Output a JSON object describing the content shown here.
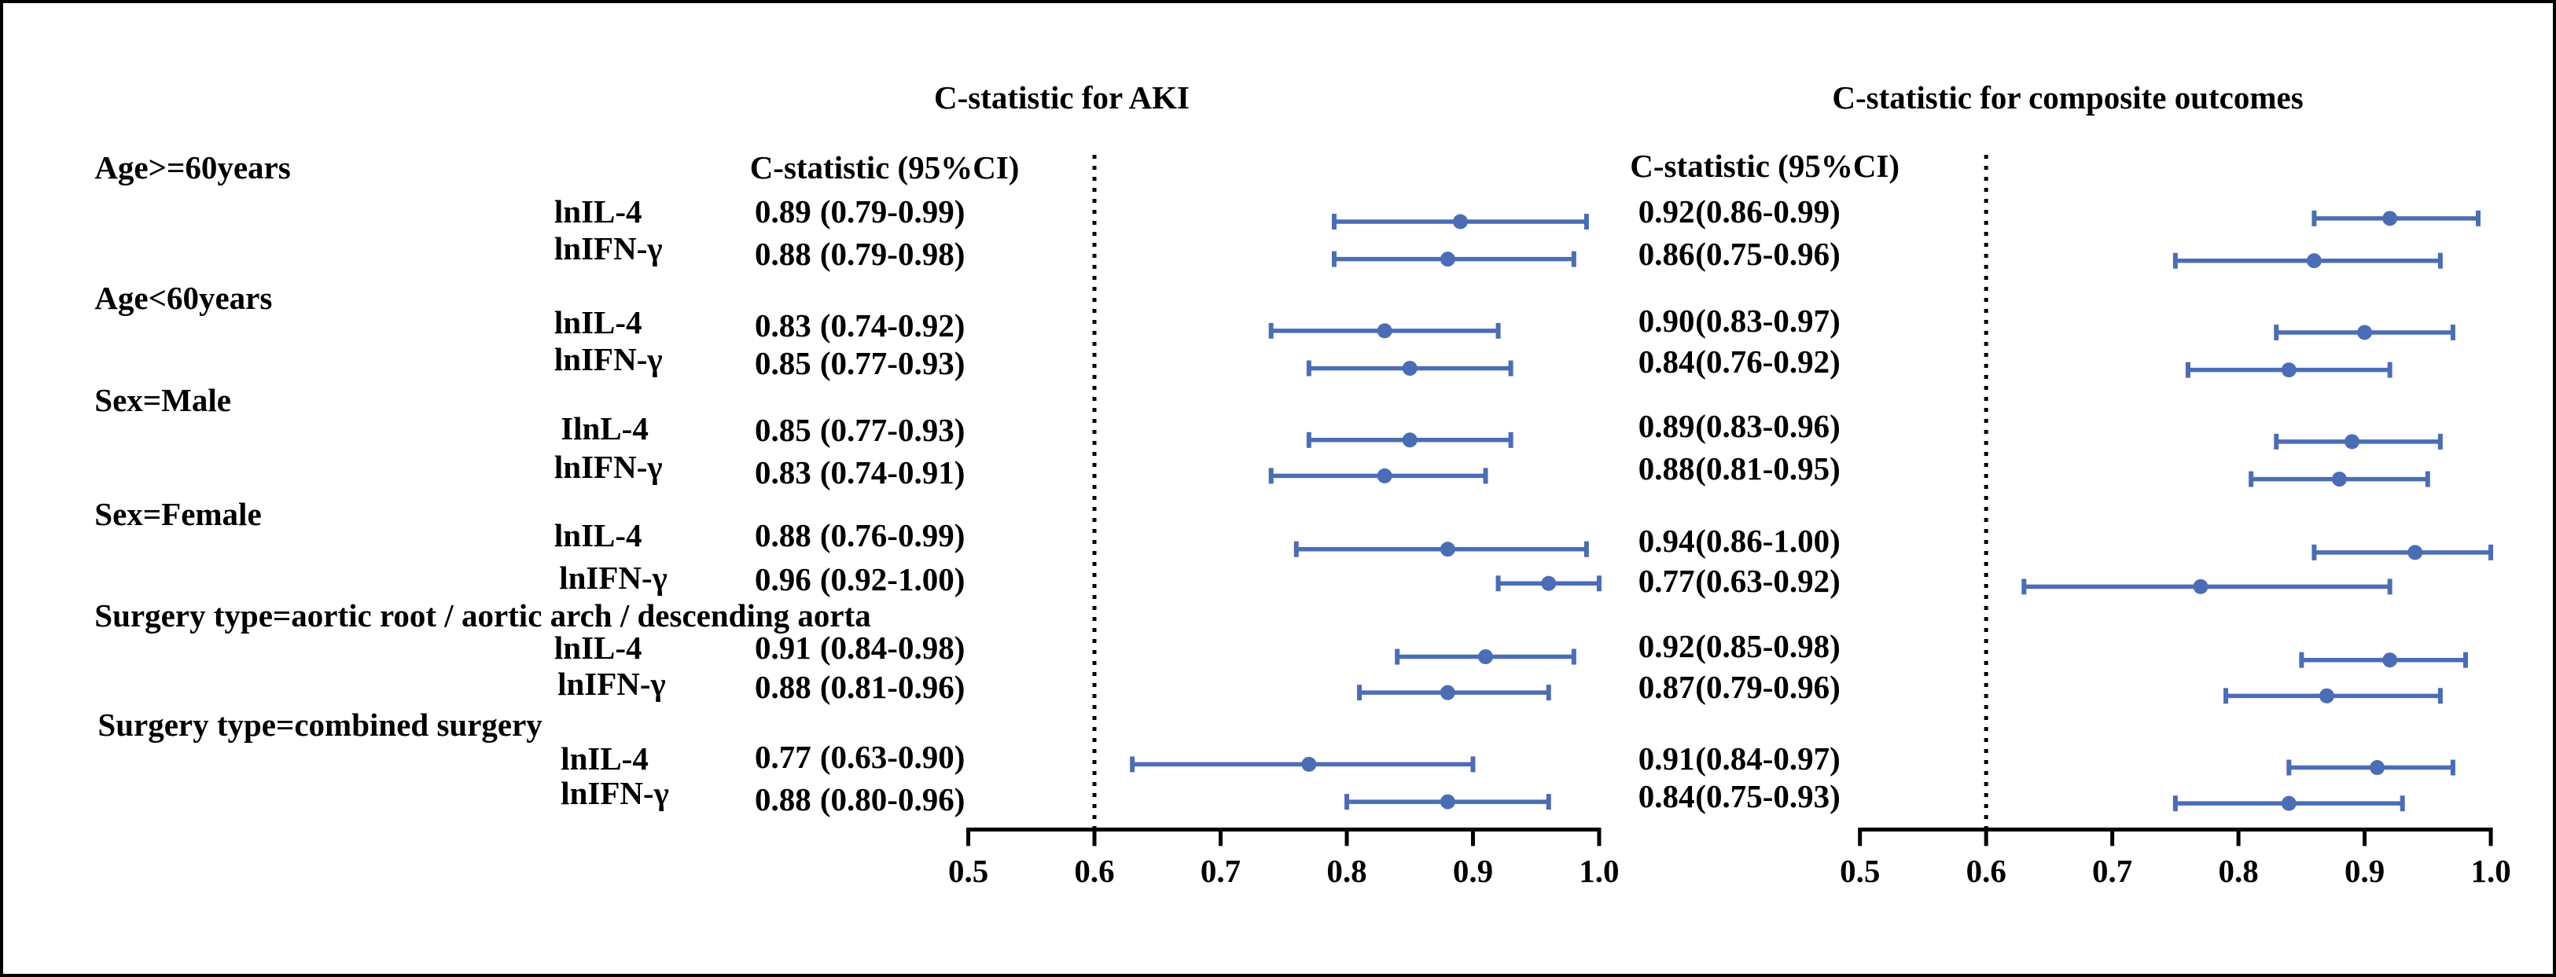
{
  "subgroups": [
    {
      "label": "Age>=60years",
      "rows": [
        "lnIL-4",
        "lnIFN-γ"
      ]
    },
    {
      "label": "Age<60years",
      "rows": [
        "lnIL-4",
        "lnIFN-γ"
      ]
    },
    {
      "label": "Sex=Male",
      "rows": [
        "IlnL-4",
        "lnIFN-γ"
      ]
    },
    {
      "label": "Sex=Female",
      "rows": [
        "lnIL-4",
        "lnIFN-γ"
      ]
    },
    {
      "label": "Surgery type=aortic root / aortic arch / descending aorta",
      "rows": [
        "lnIL-4",
        "lnIFN-γ"
      ]
    },
    {
      "label": "Surgery type=combined surgery",
      "rows": [
        "lnIL-4",
        "lnIFN-γ"
      ]
    }
  ],
  "colors": {
    "marker": "#4a6db5",
    "reference_line": "#000000"
  },
  "chart_data": [
    {
      "type": "scatter",
      "title": "C-statistic for AKI",
      "column_header": "C-statistic (95%CI)",
      "xlim": [
        0.5,
        1.0
      ],
      "xticks": [
        "0.5",
        "0.6",
        "0.7",
        "0.8",
        "0.9",
        "1.0"
      ],
      "reference_line_x": 0.6,
      "grid": false,
      "points": [
        {
          "estimate_text": "0.89",
          "ci_text": "(0.79-0.99)",
          "estimate": 0.89,
          "lower": 0.79,
          "upper": 0.99
        },
        {
          "estimate_text": "0.88",
          "ci_text": "(0.79-0.98)",
          "estimate": 0.88,
          "lower": 0.79,
          "upper": 0.98
        },
        {
          "estimate_text": "0.83",
          "ci_text": "(0.74-0.92)",
          "estimate": 0.83,
          "lower": 0.74,
          "upper": 0.92
        },
        {
          "estimate_text": "0.85",
          "ci_text": "(0.77-0.93)",
          "estimate": 0.85,
          "lower": 0.77,
          "upper": 0.93
        },
        {
          "estimate_text": "0.85",
          "ci_text": "(0.77-0.93)",
          "estimate": 0.85,
          "lower": 0.77,
          "upper": 0.93
        },
        {
          "estimate_text": "0.83",
          "ci_text": "(0.74-0.91)",
          "estimate": 0.83,
          "lower": 0.74,
          "upper": 0.91
        },
        {
          "estimate_text": "0.88",
          "ci_text": "(0.76-0.99)",
          "estimate": 0.88,
          "lower": 0.76,
          "upper": 0.99
        },
        {
          "estimate_text": "0.96",
          "ci_text": "(0.92-1.00)",
          "estimate": 0.96,
          "lower": 0.92,
          "upper": 1.0
        },
        {
          "estimate_text": "0.91",
          "ci_text": "(0.84-0.98)",
          "estimate": 0.91,
          "lower": 0.84,
          "upper": 0.98
        },
        {
          "estimate_text": "0.88",
          "ci_text": "(0.81-0.96)",
          "estimate": 0.88,
          "lower": 0.81,
          "upper": 0.96
        },
        {
          "estimate_text": "0.77",
          "ci_text": "(0.63-0.90)",
          "estimate": 0.77,
          "lower": 0.63,
          "upper": 0.9
        },
        {
          "estimate_text": "0.88",
          "ci_text": "(0.80-0.96)",
          "estimate": 0.88,
          "lower": 0.8,
          "upper": 0.96
        }
      ]
    },
    {
      "type": "scatter",
      "title": "C-statistic for composite outcomes",
      "column_header": "C-statistic (95%CI)",
      "xlim": [
        0.5,
        1.0
      ],
      "xticks": [
        "0.5",
        "0.6",
        "0.7",
        "0.8",
        "0.9",
        "1.0"
      ],
      "reference_line_x": 0.6,
      "grid": false,
      "points": [
        {
          "estimate_text": "0.92",
          "ci_text": "(0.86-0.99)",
          "estimate": 0.92,
          "lower": 0.86,
          "upper": 0.99
        },
        {
          "estimate_text": "0.86",
          "ci_text": "(0.75-0.96)",
          "estimate": 0.86,
          "lower": 0.75,
          "upper": 0.96
        },
        {
          "estimate_text": "0.90",
          "ci_text": "(0.83-0.97)",
          "estimate": 0.9,
          "lower": 0.83,
          "upper": 0.97
        },
        {
          "estimate_text": "0.84",
          "ci_text": "(0.76-0.92)",
          "estimate": 0.84,
          "lower": 0.76,
          "upper": 0.92
        },
        {
          "estimate_text": "0.89",
          "ci_text": "(0.83-0.96)",
          "estimate": 0.89,
          "lower": 0.83,
          "upper": 0.96
        },
        {
          "estimate_text": "0.88",
          "ci_text": "(0.81-0.95)",
          "estimate": 0.88,
          "lower": 0.81,
          "upper": 0.95
        },
        {
          "estimate_text": "0.94",
          "ci_text": "(0.86-1.00)",
          "estimate": 0.94,
          "lower": 0.86,
          "upper": 1.0
        },
        {
          "estimate_text": "0.77",
          "ci_text": "(0.63-0.92)",
          "estimate": 0.77,
          "lower": 0.63,
          "upper": 0.92
        },
        {
          "estimate_text": "0.92",
          "ci_text": "(0.85-0.98)",
          "estimate": 0.92,
          "lower": 0.85,
          "upper": 0.98
        },
        {
          "estimate_text": "0.87",
          "ci_text": "(0.79-0.96)",
          "estimate": 0.87,
          "lower": 0.79,
          "upper": 0.96
        },
        {
          "estimate_text": "0.91",
          "ci_text": "(0.84-0.97)",
          "estimate": 0.91,
          "lower": 0.84,
          "upper": 0.97
        },
        {
          "estimate_text": "0.84",
          "ci_text": "(0.75-0.93)",
          "estimate": 0.84,
          "lower": 0.75,
          "upper": 0.93
        }
      ]
    }
  ]
}
